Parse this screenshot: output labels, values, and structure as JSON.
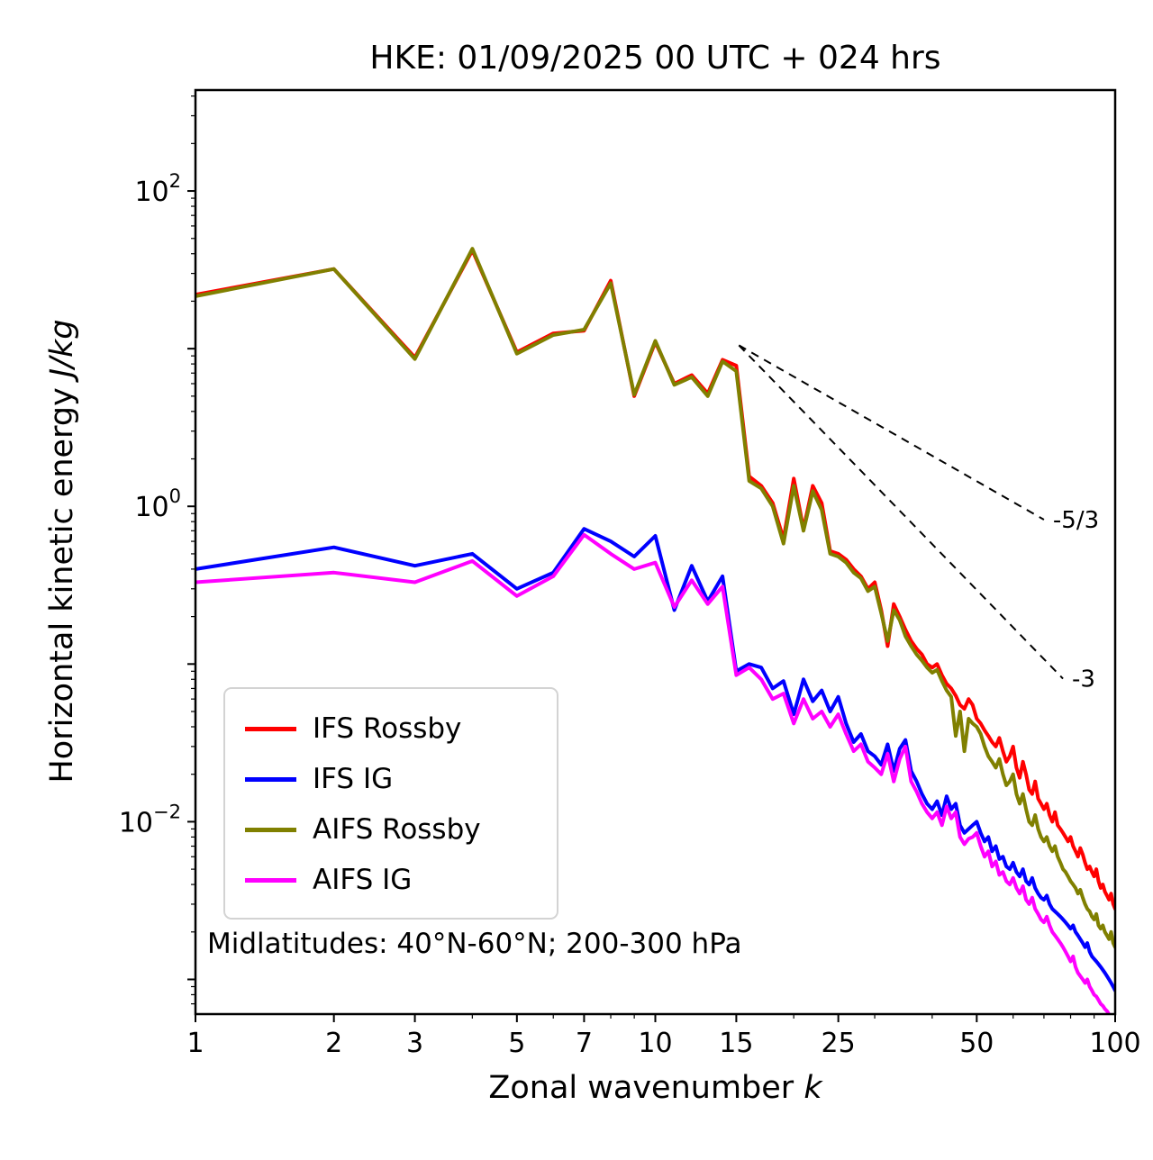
{
  "title": "HKE: 01/09/2025 00 UTC + 024 hrs",
  "axes": {
    "xlabel": "Zonal wavenumber ",
    "x_symbol": "k",
    "ylabel": "Horizontal kinetic energy ",
    "y_units": "J/kg"
  },
  "annotation": "Midlatitudes: 40°N-60°N; 200-300 hPa",
  "legend": {
    "items": [
      {
        "label": "IFS Rossby",
        "color": "#ff0000"
      },
      {
        "label": "IFS IG",
        "color": "#0000ff"
      },
      {
        "label": "AIFS Rossby",
        "color": "#808000"
      },
      {
        "label": "AIFS IG",
        "color": "#ff00ff"
      }
    ]
  },
  "chart_data": {
    "type": "line",
    "x_scale": "log",
    "y_scale": "log",
    "x_range": [
      1,
      100
    ],
    "y_range_exponents": [
      -3.22,
      2.64
    ],
    "x_ticks": [
      1,
      2,
      3,
      5,
      7,
      10,
      15,
      25,
      50,
      100
    ],
    "y_tick_exponents": [
      -2,
      0,
      2
    ],
    "x": [
      1,
      2,
      3,
      4,
      5,
      6,
      7,
      8,
      9,
      10,
      11,
      12,
      13,
      14,
      15,
      16,
      17,
      18,
      19,
      20,
      21,
      22,
      23,
      24,
      25,
      26,
      27,
      28,
      29,
      30,
      31,
      32,
      33,
      34,
      35,
      36,
      37,
      38,
      39,
      40,
      41,
      42,
      43,
      44,
      45,
      46,
      47,
      48,
      49,
      50,
      51,
      52,
      53,
      54,
      55,
      56,
      57,
      58,
      59,
      60,
      61,
      62,
      63,
      64,
      65,
      66,
      67,
      68,
      69,
      70,
      71,
      72,
      73,
      74,
      75,
      76,
      77,
      78,
      79,
      80,
      81,
      82,
      83,
      84,
      85,
      86,
      87,
      88,
      89,
      90,
      91,
      92,
      93,
      94,
      95,
      96,
      97,
      98,
      99,
      100
    ],
    "series": [
      {
        "name": "IFS Rossby",
        "color": "#ff0000",
        "values": [
          22,
          32,
          8.8,
          42,
          9.5,
          12.5,
          13,
          27,
          5,
          11,
          6,
          6.8,
          5.2,
          8.5,
          7.8,
          1.55,
          1.35,
          1.05,
          0.62,
          1.5,
          0.72,
          1.35,
          1.05,
          0.52,
          0.5,
          0.46,
          0.4,
          0.36,
          0.3,
          0.33,
          0.22,
          0.13,
          0.24,
          0.2,
          0.165,
          0.14,
          0.125,
          0.115,
          0.1,
          0.095,
          0.1,
          0.085,
          0.075,
          0.07,
          0.063,
          0.055,
          0.052,
          0.06,
          0.055,
          0.045,
          0.042,
          0.038,
          0.035,
          0.032,
          0.03,
          0.034,
          0.028,
          0.024,
          0.026,
          0.03,
          0.022,
          0.019,
          0.024,
          0.02,
          0.016,
          0.015,
          0.018,
          0.014,
          0.013,
          0.012,
          0.013,
          0.011,
          0.01,
          0.0115,
          0.0095,
          0.009,
          0.0085,
          0.008,
          0.0075,
          0.008,
          0.007,
          0.0065,
          0.006,
          0.0068,
          0.0062,
          0.0055,
          0.005,
          0.0052,
          0.0048,
          0.0045,
          0.005,
          0.0042,
          0.0038,
          0.004,
          0.0036,
          0.0034,
          0.0032,
          0.0035,
          0.003,
          0.0028
        ]
      },
      {
        "name": "IFS IG",
        "color": "#0000ff",
        "values": [
          0.4,
          0.55,
          0.42,
          0.5,
          0.3,
          0.38,
          0.72,
          0.6,
          0.48,
          0.65,
          0.22,
          0.42,
          0.25,
          0.36,
          0.09,
          0.1,
          0.095,
          0.07,
          0.078,
          0.048,
          0.08,
          0.058,
          0.068,
          0.05,
          0.062,
          0.042,
          0.032,
          0.036,
          0.028,
          0.026,
          0.023,
          0.031,
          0.021,
          0.029,
          0.033,
          0.021,
          0.018,
          0.015,
          0.013,
          0.012,
          0.0135,
          0.011,
          0.0145,
          0.012,
          0.013,
          0.0095,
          0.0085,
          0.009,
          0.0095,
          0.01,
          0.0085,
          0.0075,
          0.008,
          0.0065,
          0.007,
          0.0058,
          0.006,
          0.0052,
          0.005,
          0.0055,
          0.0048,
          0.0045,
          0.005,
          0.0042,
          0.004,
          0.0044,
          0.0038,
          0.0035,
          0.0033,
          0.0032,
          0.0034,
          0.003,
          0.0028,
          0.0027,
          0.0026,
          0.0025,
          0.0024,
          0.0023,
          0.0022,
          0.0021,
          0.0022,
          0.002,
          0.0019,
          0.0018,
          0.0017,
          0.0016,
          0.0017,
          0.0015,
          0.0014,
          0.00135,
          0.0013,
          0.00125,
          0.0012,
          0.00115,
          0.0011,
          0.00105,
          0.001,
          0.00095,
          0.0009,
          0.00085
        ]
      },
      {
        "name": "AIFS Rossby",
        "color": "#808000",
        "values": [
          21.5,
          32,
          8.6,
          43,
          9.3,
          12.2,
          13.2,
          26,
          5.1,
          11.2,
          5.9,
          6.6,
          5,
          8.3,
          7.2,
          1.45,
          1.3,
          1,
          0.58,
          1.35,
          0.7,
          1.25,
          0.95,
          0.5,
          0.48,
          0.44,
          0.38,
          0.35,
          0.29,
          0.31,
          0.21,
          0.14,
          0.22,
          0.19,
          0.15,
          0.13,
          0.115,
          0.105,
          0.095,
          0.088,
          0.092,
          0.078,
          0.068,
          0.062,
          0.035,
          0.05,
          0.028,
          0.045,
          0.042,
          0.04,
          0.036,
          0.03,
          0.026,
          0.024,
          0.022,
          0.025,
          0.02,
          0.017,
          0.018,
          0.02,
          0.015,
          0.013,
          0.015,
          0.012,
          0.01,
          0.0095,
          0.011,
          0.009,
          0.008,
          0.0075,
          0.008,
          0.007,
          0.0065,
          0.007,
          0.006,
          0.0055,
          0.005,
          0.0048,
          0.0045,
          0.0042,
          0.004,
          0.0038,
          0.0035,
          0.0037,
          0.0033,
          0.003,
          0.0028,
          0.0027,
          0.0025,
          0.0024,
          0.0026,
          0.0022,
          0.0021,
          0.0022,
          0.002,
          0.0019,
          0.0018,
          0.002,
          0.0017,
          0.0016
        ]
      },
      {
        "name": "AIFS IG",
        "color": "#ff00ff",
        "values": [
          0.33,
          0.38,
          0.33,
          0.45,
          0.27,
          0.36,
          0.66,
          0.5,
          0.4,
          0.44,
          0.23,
          0.34,
          0.24,
          0.31,
          0.085,
          0.095,
          0.08,
          0.06,
          0.065,
          0.042,
          0.06,
          0.045,
          0.05,
          0.04,
          0.048,
          0.036,
          0.028,
          0.031,
          0.024,
          0.022,
          0.02,
          0.027,
          0.018,
          0.025,
          0.03,
          0.018,
          0.0155,
          0.013,
          0.0115,
          0.0105,
          0.0115,
          0.0095,
          0.0125,
          0.0105,
          0.0115,
          0.008,
          0.0072,
          0.0078,
          0.008,
          0.0085,
          0.007,
          0.006,
          0.0065,
          0.0052,
          0.0056,
          0.0046,
          0.0048,
          0.0042,
          0.004,
          0.0044,
          0.0038,
          0.0035,
          0.0039,
          0.0032,
          0.003,
          0.0033,
          0.0028,
          0.0026,
          0.0024,
          0.0023,
          0.0025,
          0.0022,
          0.002,
          0.0019,
          0.0018,
          0.0017,
          0.0016,
          0.0015,
          0.0014,
          0.0013,
          0.0014,
          0.0012,
          0.0011,
          0.00105,
          0.001,
          0.00095,
          0.001,
          0.0009,
          0.00085,
          0.0008,
          0.00078,
          0.00074,
          0.0007,
          0.00068,
          0.00065,
          0.00063,
          0.0006,
          0.00058,
          0.00056,
          0.00055
        ]
      }
    ],
    "reference_lines": [
      {
        "label": "-5/3",
        "slope": -1.66667,
        "anchor_k": 15.2,
        "anchor_v": 10.5,
        "end_k": 70
      },
      {
        "label": "-3",
        "slope": -3,
        "anchor_k": 15.2,
        "anchor_v": 10.5,
        "end_k": 77
      }
    ]
  }
}
